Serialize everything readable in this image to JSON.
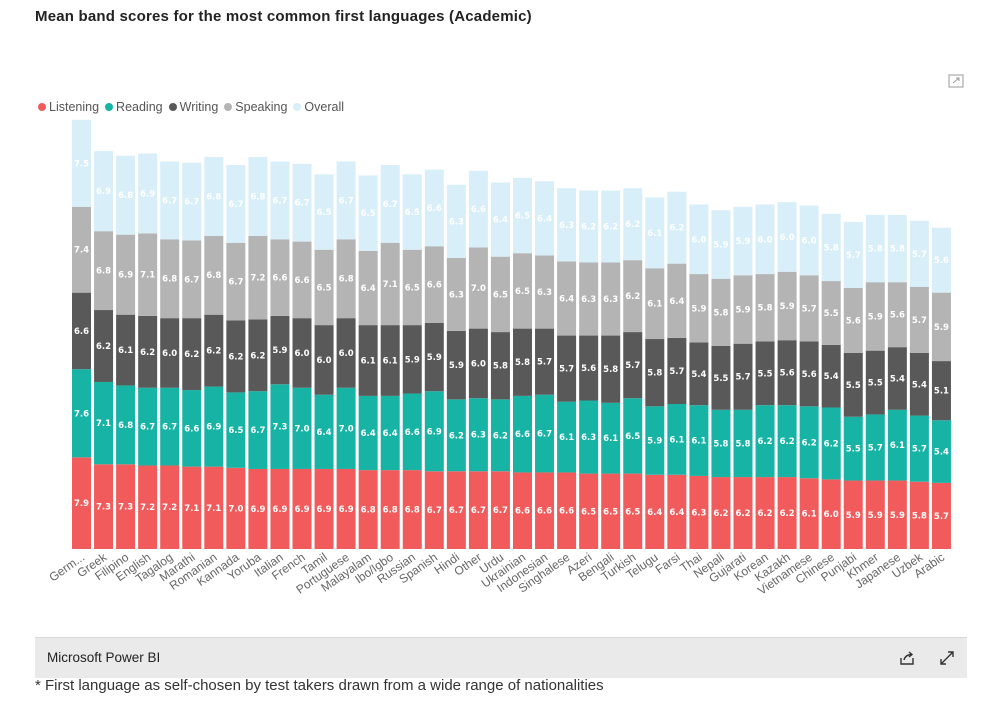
{
  "title": "Mean band scores for the most common first languages (Academic)",
  "footer": {
    "brand": "Microsoft Power BI",
    "note": "* First language as self-chosen by test takers drawn from a wide range of nationalities"
  },
  "icons": {
    "focus": "focus-mode-icon",
    "share": "share-icon",
    "expand": "fullscreen-icon"
  },
  "colors": {
    "Listening": "#f25b5b",
    "Reading": "#17b3a5",
    "Writing": "#595959",
    "Speaking": "#b4b4b4",
    "Overall": "#d8eef9"
  },
  "chart_data": {
    "type": "bar",
    "stacked": true,
    "legend_position": "top-left",
    "categories": [
      "Germ...",
      "Greek",
      "Filipino",
      "English",
      "Tagalog",
      "Marathi",
      "Romanian",
      "Kannada",
      "Yoruba",
      "Italian",
      "French",
      "Tamil",
      "Portuguese",
      "Malayalam",
      "Ibo/Igbo",
      "Russian",
      "Spanish",
      "Hindi",
      "Other",
      "Urdu",
      "Ukrainian",
      "Indonesian",
      "Singhalese",
      "Azeri",
      "Bengali",
      "Turkish",
      "Telugu",
      "Farsi",
      "Thai",
      "Nepali",
      "Gujarati",
      "Korean",
      "Kazakh",
      "Vietnamese",
      "Chinese",
      "Punjabi",
      "Khmer",
      "Japanese",
      "Uzbek",
      "Arabic"
    ],
    "series": [
      {
        "name": "Listening",
        "values": [
          7.9,
          7.3,
          7.3,
          7.2,
          7.2,
          7.1,
          7.1,
          7.0,
          6.9,
          6.9,
          6.9,
          6.9,
          6.9,
          6.8,
          6.8,
          6.8,
          6.7,
          6.7,
          6.7,
          6.7,
          6.6,
          6.6,
          6.6,
          6.5,
          6.5,
          6.5,
          6.4,
          6.4,
          6.3,
          6.2,
          6.2,
          6.2,
          6.2,
          6.1,
          6.0,
          5.9,
          5.9,
          5.9,
          5.8,
          5.7
        ]
      },
      {
        "name": "Reading",
        "values": [
          7.6,
          7.1,
          6.8,
          6.7,
          6.7,
          6.6,
          6.9,
          6.5,
          6.7,
          7.3,
          7.0,
          6.4,
          7.0,
          6.4,
          6.4,
          6.6,
          6.9,
          6.2,
          6.3,
          6.2,
          6.6,
          6.7,
          6.1,
          6.3,
          6.1,
          6.5,
          5.9,
          6.1,
          6.1,
          5.8,
          5.8,
          6.2,
          6.2,
          6.2,
          6.2,
          5.5,
          5.7,
          6.1,
          5.7,
          5.4
        ]
      },
      {
        "name": "Writing",
        "values": [
          6.6,
          6.2,
          6.1,
          6.2,
          6.0,
          6.2,
          6.2,
          6.2,
          6.2,
          5.9,
          6.0,
          6.0,
          6.0,
          6.1,
          6.1,
          5.9,
          5.9,
          5.9,
          6.0,
          5.8,
          5.8,
          5.7,
          5.7,
          5.6,
          5.8,
          5.7,
          5.8,
          5.7,
          5.4,
          5.5,
          5.7,
          5.5,
          5.6,
          5.6,
          5.4,
          5.5,
          5.5,
          5.4,
          5.4,
          5.1
        ]
      },
      {
        "name": "Speaking",
        "values": [
          7.4,
          6.8,
          6.9,
          7.1,
          6.8,
          6.7,
          6.8,
          6.7,
          7.2,
          6.6,
          6.6,
          6.5,
          6.8,
          6.4,
          7.1,
          6.5,
          6.6,
          6.3,
          7.0,
          6.5,
          6.5,
          6.3,
          6.4,
          6.3,
          6.3,
          6.2,
          6.1,
          6.4,
          5.9,
          5.8,
          5.9,
          5.8,
          5.9,
          5.7,
          5.5,
          5.6,
          5.9,
          5.6,
          5.7,
          5.9
        ]
      },
      {
        "name": "Overall",
        "values": [
          7.5,
          6.9,
          6.8,
          6.9,
          6.7,
          6.7,
          6.8,
          6.7,
          6.8,
          6.7,
          6.7,
          6.5,
          6.7,
          6.5,
          6.7,
          6.5,
          6.6,
          6.3,
          6.6,
          6.4,
          6.5,
          6.4,
          6.3,
          6.2,
          6.2,
          6.2,
          6.1,
          6.2,
          6.0,
          5.9,
          5.9,
          6.0,
          6.0,
          6.0,
          5.8,
          5.7,
          5.8,
          5.8,
          5.7,
          5.6
        ]
      }
    ],
    "xlabel": "",
    "ylabel": "",
    "grid": false
  }
}
